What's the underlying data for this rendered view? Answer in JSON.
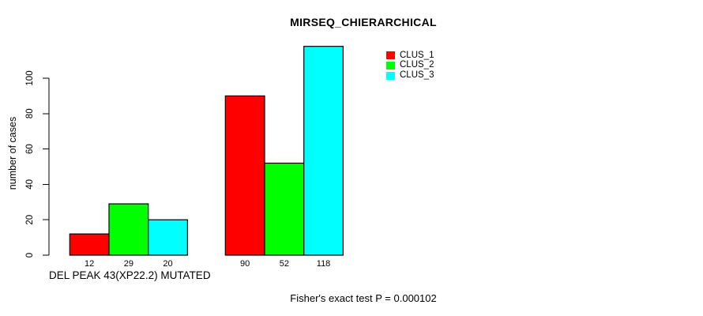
{
  "chart_data": {
    "type": "bar",
    "title": "MIRSEQ_CHIERARCHICAL",
    "ylabel": "number of cases",
    "xlabel": "",
    "ylim": [
      0,
      100
    ],
    "yticks": [
      0,
      20,
      40,
      60,
      80,
      100
    ],
    "categories": [
      "DEL PEAK 43(XP22.2) MUTATED",
      ""
    ],
    "series": [
      {
        "name": "CLUS_1",
        "color": "#ff0000",
        "values": [
          12,
          90
        ]
      },
      {
        "name": "CLUS_2",
        "color": "#00ff00",
        "values": [
          29,
          52
        ]
      },
      {
        "name": "CLUS_3",
        "color": "#00ffff",
        "values": [
          20,
          118
        ]
      }
    ],
    "bar_values_shown": true,
    "bar_border_color": "#000000",
    "annotation": "Fisher's exact test P = 0.000102",
    "legend_position": "top-right",
    "grid": false,
    "background_color": "#ffffff"
  }
}
